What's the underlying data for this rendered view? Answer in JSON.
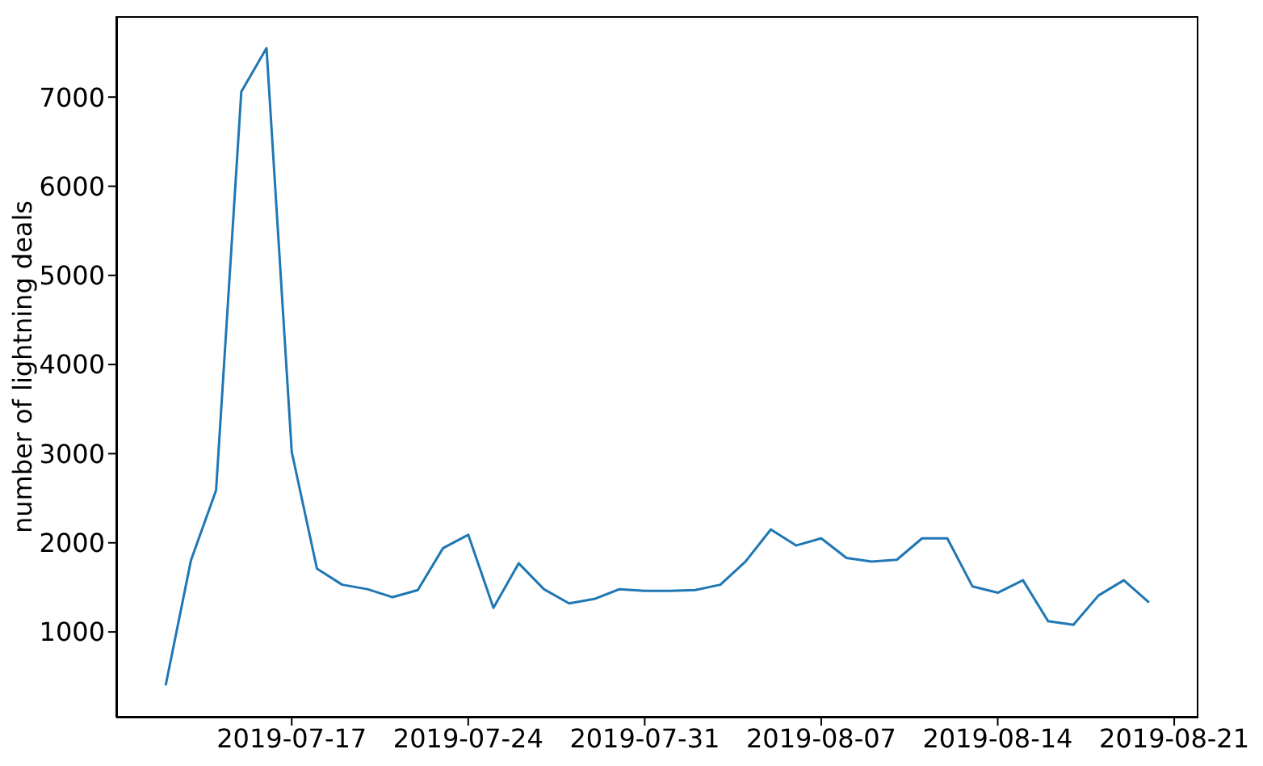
{
  "chart_data": {
    "type": "line",
    "ylabel": "number of lightning deals",
    "x": [
      "2019-07-12",
      "2019-07-13",
      "2019-07-14",
      "2019-07-15",
      "2019-07-16",
      "2019-07-17",
      "2019-07-18",
      "2019-07-19",
      "2019-07-20",
      "2019-07-21",
      "2019-07-22",
      "2019-07-23",
      "2019-07-24",
      "2019-07-25",
      "2019-07-26",
      "2019-07-27",
      "2019-07-28",
      "2019-07-29",
      "2019-07-30",
      "2019-07-31",
      "2019-08-01",
      "2019-08-02",
      "2019-08-03",
      "2019-08-04",
      "2019-08-05",
      "2019-08-06",
      "2019-08-07",
      "2019-08-08",
      "2019-08-09",
      "2019-08-10",
      "2019-08-11",
      "2019-08-12",
      "2019-08-13",
      "2019-08-14",
      "2019-08-15",
      "2019-08-16",
      "2019-08-17",
      "2019-08-18",
      "2019-08-19",
      "2019-08-20"
    ],
    "series": [
      {
        "color": "#1f77b4",
        "values": [
          400,
          1800,
          2590,
          7060,
          7550,
          3020,
          1710,
          1530,
          1480,
          1390,
          1470,
          1940,
          2090,
          1270,
          1770,
          1480,
          1320,
          1370,
          1480,
          1460,
          1460,
          1470,
          1530,
          1790,
          2150,
          1970,
          2050,
          1830,
          1790,
          1810,
          2050,
          2050,
          1510,
          1440,
          1580,
          1120,
          1080,
          1410,
          1580,
          1330
        ]
      }
    ],
    "xlim": [
      "2019-07-10T01:00",
      "2019-08-21T23:00"
    ],
    "xticks": [
      "2019-07-17",
      "2019-07-24",
      "2019-07-31",
      "2019-08-07",
      "2019-08-14",
      "2019-08-21"
    ],
    "ylim": [
      40,
      7908
    ],
    "yticks": [
      1000,
      2000,
      3000,
      4000,
      5000,
      6000,
      7000
    ],
    "grid": false,
    "legend": false,
    "marker": "none",
    "line_style": "solid"
  }
}
